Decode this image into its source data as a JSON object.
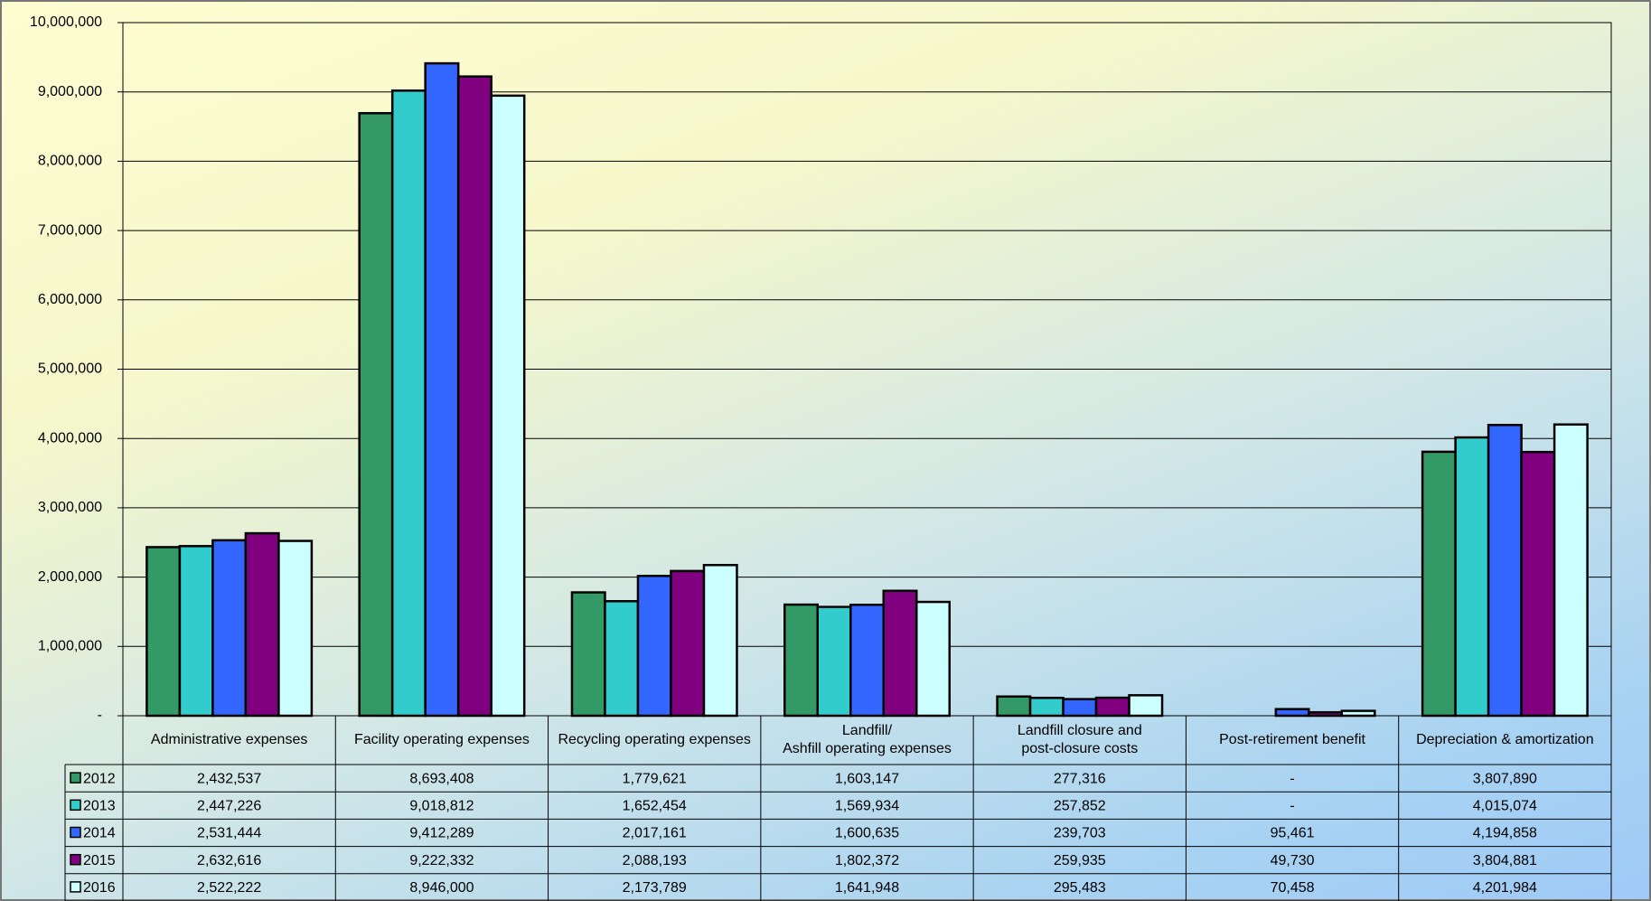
{
  "chart_data": {
    "type": "bar",
    "categories": [
      "Administrative expenses",
      "Facility operating expenses",
      "Recycling operating expenses",
      "Landfill/\nAshfill operating expenses",
      "Landfill closure and\npost-closure costs",
      "Post-retirement benefit",
      "Depreciation & amortization"
    ],
    "series": [
      {
        "name": "2012",
        "color": "#339966",
        "values": [
          2432537,
          8693408,
          1779621,
          1603147,
          277316,
          null,
          3807890
        ],
        "value_labels": [
          "2,432,537",
          "8,693,408",
          "1,779,621",
          "1,603,147",
          "277,316",
          "-",
          "3,807,890"
        ]
      },
      {
        "name": "2013",
        "color": "#33cccc",
        "values": [
          2447226,
          9018812,
          1652454,
          1569934,
          257852,
          null,
          4015074
        ],
        "value_labels": [
          "2,447,226",
          "9,018,812",
          "1,652,454",
          "1,569,934",
          "257,852",
          "-",
          "4,015,074"
        ]
      },
      {
        "name": "2014",
        "color": "#3366ff",
        "values": [
          2531444,
          9412289,
          2017161,
          1600635,
          239703,
          95461,
          4194858
        ],
        "value_labels": [
          "2,531,444",
          "9,412,289",
          "2,017,161",
          "1,600,635",
          "239,703",
          "95,461",
          "4,194,858"
        ]
      },
      {
        "name": "2015",
        "color": "#800080",
        "values": [
          2632616,
          9222332,
          2088193,
          1802372,
          259935,
          49730,
          3804881
        ],
        "value_labels": [
          "2,632,616",
          "9,222,332",
          "2,088,193",
          "1,802,372",
          "259,935",
          "49,730",
          "3,804,881"
        ]
      },
      {
        "name": "2016",
        "color": "#ccffff",
        "values": [
          2522222,
          8946000,
          2173789,
          1641948,
          295483,
          70458,
          4201984
        ],
        "value_labels": [
          "2,522,222",
          "8,946,000",
          "2,173,789",
          "1,641,948",
          "295,483",
          "70,458",
          "4,201,984"
        ]
      }
    ],
    "ylim": [
      0,
      10000000
    ],
    "yticks": [
      {
        "value": 0,
        "label": "-"
      },
      {
        "value": 1000000,
        "label": "1,000,000"
      },
      {
        "value": 2000000,
        "label": "2,000,000"
      },
      {
        "value": 3000000,
        "label": "3,000,000"
      },
      {
        "value": 4000000,
        "label": "4,000,000"
      },
      {
        "value": 5000000,
        "label": "5,000,000"
      },
      {
        "value": 6000000,
        "label": "6,000,000"
      },
      {
        "value": 7000000,
        "label": "7,000,000"
      },
      {
        "value": 8000000,
        "label": "8,000,000"
      },
      {
        "value": 9000000,
        "label": "9,000,000"
      },
      {
        "value": 10000000,
        "label": "10,000,000"
      }
    ],
    "grid": true
  }
}
